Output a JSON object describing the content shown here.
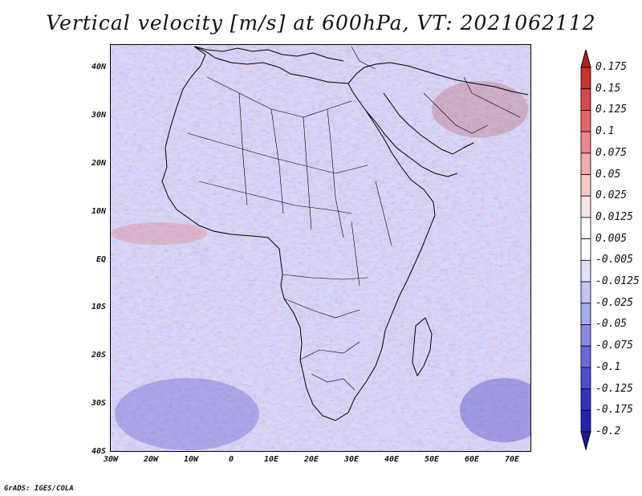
{
  "title": "Vertical velocity [m/s] at 600hPa, VT: 2021062112",
  "footer": "GrADS: IGES/COLA",
  "map": {
    "lat_labels": [
      "40N",
      "30N",
      "20N",
      "10N",
      "EQ",
      "10S",
      "20S",
      "30S",
      "40S"
    ],
    "lon_labels": [
      "30W",
      "20W",
      "10W",
      "0",
      "10E",
      "20E",
      "30E",
      "40E",
      "50E",
      "60E",
      "70E"
    ],
    "colors": {
      "up_strong": "#b81c1c",
      "down_strong": "#2a1fb0",
      "neutral": "#ffffff"
    }
  },
  "colorbar": {
    "labels": [
      "0.175",
      "0.15",
      "0.125",
      "0.1",
      "0.075",
      "0.05",
      "0.025",
      "0.0125",
      "0.005",
      "-0.005",
      "-0.0125",
      "-0.025",
      "-0.05",
      "-0.075",
      "-0.1",
      "-0.125",
      "-0.175",
      "-0.2"
    ],
    "colors": [
      "#b51d1d",
      "#c93030",
      "#d84848",
      "#e36666",
      "#ec8888",
      "#f3aaaa",
      "#f8c8c8",
      "#fce3e3",
      "#ffffff",
      "#ffffff",
      "#e0e0fb",
      "#c4c4f6",
      "#a8a8ef",
      "#8a8ae6",
      "#6a6adc",
      "#4c4cd0",
      "#3333c2",
      "#2323b0",
      "#1a1a9c"
    ]
  }
}
